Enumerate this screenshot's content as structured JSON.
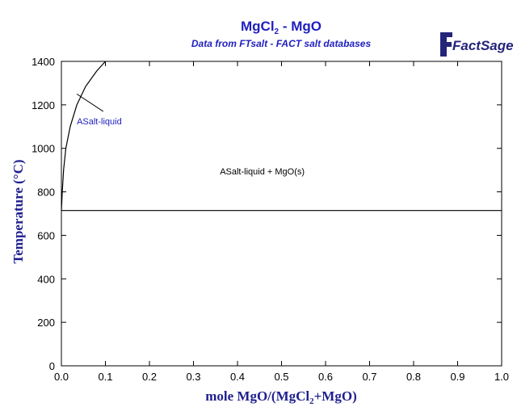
{
  "chart_data": {
    "type": "line",
    "title_main": "MgCl",
    "title_sub": "2",
    "title_rest": " - MgO",
    "subtitle": "Data from FTsalt - FACT salt databases",
    "logo_text": "FactSage",
    "xlabel_main": "mole MgO/(MgCl",
    "xlabel_sub": "2",
    "xlabel_rest": "+MgO)",
    "ylabel": "Temperature (°C)",
    "xlim": [
      0,
      1
    ],
    "ylim": [
      0,
      1400
    ],
    "x_ticks": [
      0.0,
      0.1,
      0.2,
      0.3,
      0.4,
      0.5,
      0.6,
      0.7,
      0.8,
      0.9,
      1.0
    ],
    "x_tick_labels": [
      "0.0",
      "0.1",
      "0.2",
      "0.3",
      "0.4",
      "0.5",
      "0.6",
      "0.7",
      "0.8",
      "0.9",
      "1.0"
    ],
    "y_ticks": [
      0,
      200,
      400,
      600,
      800,
      1000,
      1200,
      1400
    ],
    "y_tick_labels": [
      "0",
      "200",
      "400",
      "600",
      "800",
      "1000",
      "1200",
      "1400"
    ],
    "series": [
      {
        "values": [
          {
            "x": 0.0,
            "y": 714
          },
          {
            "x": 0.002,
            "y": 800
          },
          {
            "x": 0.005,
            "y": 900
          },
          {
            "x": 0.01,
            "y": 1000
          },
          {
            "x": 0.02,
            "y": 1100
          },
          {
            "x": 0.035,
            "y": 1200
          },
          {
            "x": 0.055,
            "y": 1285
          },
          {
            "x": 0.08,
            "y": 1355
          },
          {
            "x": 0.1,
            "y": 1400
          }
        ],
        "color": "#000000"
      },
      {
        "values": [
          {
            "x": 0.0,
            "y": 714
          },
          {
            "x": 1.0,
            "y": 714
          }
        ],
        "color": "#000000"
      }
    ],
    "annotations": [
      {
        "text": "ASalt-liquid",
        "x": 0.035,
        "y": 1110,
        "color": "#1f1fbf",
        "pointer": {
          "x1": 0.035,
          "y1": 1250,
          "x2": 0.095,
          "y2": 1170
        }
      },
      {
        "text": "ASalt-liquid + MgO(s)",
        "x": 0.36,
        "y": 880,
        "color": "#000000"
      }
    ],
    "grid": false
  }
}
